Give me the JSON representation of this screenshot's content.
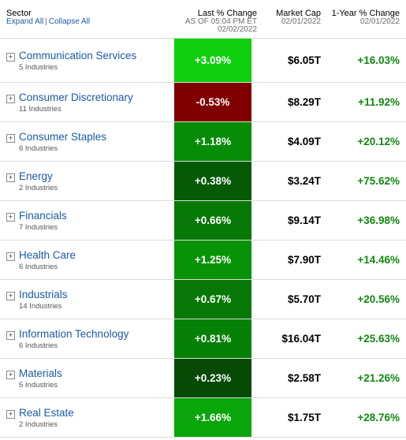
{
  "header": {
    "sector": "Sector",
    "expand_all": "Expand All",
    "separator": "|",
    "collapse_all": "Collapse All",
    "last_change": "Last % Change",
    "as_of": "AS OF 05:04 PM ET",
    "as_of_date": "02/02/2022",
    "market_cap": "Market Cap",
    "market_cap_date": "02/01/2022",
    "year_change": "1-Year % Change",
    "year_change_date": "02/01/2022"
  },
  "expander_glyph": "+",
  "rows": [
    {
      "name": "Communication Services",
      "industries": "5 Industries",
      "change": "+3.09%",
      "change_color": "#0fcf0f",
      "market_cap": "$6.05T",
      "year_change": "+16.03%"
    },
    {
      "name": "Consumer Discretionary",
      "industries": "11 Industries",
      "change": "-0.53%",
      "change_color": "#800000",
      "market_cap": "$8.29T",
      "year_change": "+11.92%"
    },
    {
      "name": "Consumer Staples",
      "industries": "6 Industries",
      "change": "+1.18%",
      "change_color": "#078c07",
      "market_cap": "$4.09T",
      "year_change": "+20.12%"
    },
    {
      "name": "Energy",
      "industries": "2 Industries",
      "change": "+0.38%",
      "change_color": "#065a06",
      "market_cap": "$3.24T",
      "year_change": "+75.62%"
    },
    {
      "name": "Financials",
      "industries": "7 Industries",
      "change": "+0.66%",
      "change_color": "#077807",
      "market_cap": "$9.14T",
      "year_change": "+36.98%"
    },
    {
      "name": "Health Care",
      "industries": "6 Industries",
      "change": "+1.25%",
      "change_color": "#089208",
      "market_cap": "$7.90T",
      "year_change": "+14.46%"
    },
    {
      "name": "Industrials",
      "industries": "14 Industries",
      "change": "+0.67%",
      "change_color": "#077807",
      "market_cap": "$5.70T",
      "year_change": "+20.56%"
    },
    {
      "name": "Information Technology",
      "industries": "6 Industries",
      "change": "+0.81%",
      "change_color": "#078007",
      "market_cap": "$16.04T",
      "year_change": "+25.63%"
    },
    {
      "name": "Materials",
      "industries": "5 Industries",
      "change": "+0.23%",
      "change_color": "#064a06",
      "market_cap": "$2.58T",
      "year_change": "+21.26%"
    },
    {
      "name": "Real Estate",
      "industries": "2 Industries",
      "change": "+1.66%",
      "change_color": "#0aa50a",
      "market_cap": "$1.75T",
      "year_change": "+28.76%"
    }
  ]
}
